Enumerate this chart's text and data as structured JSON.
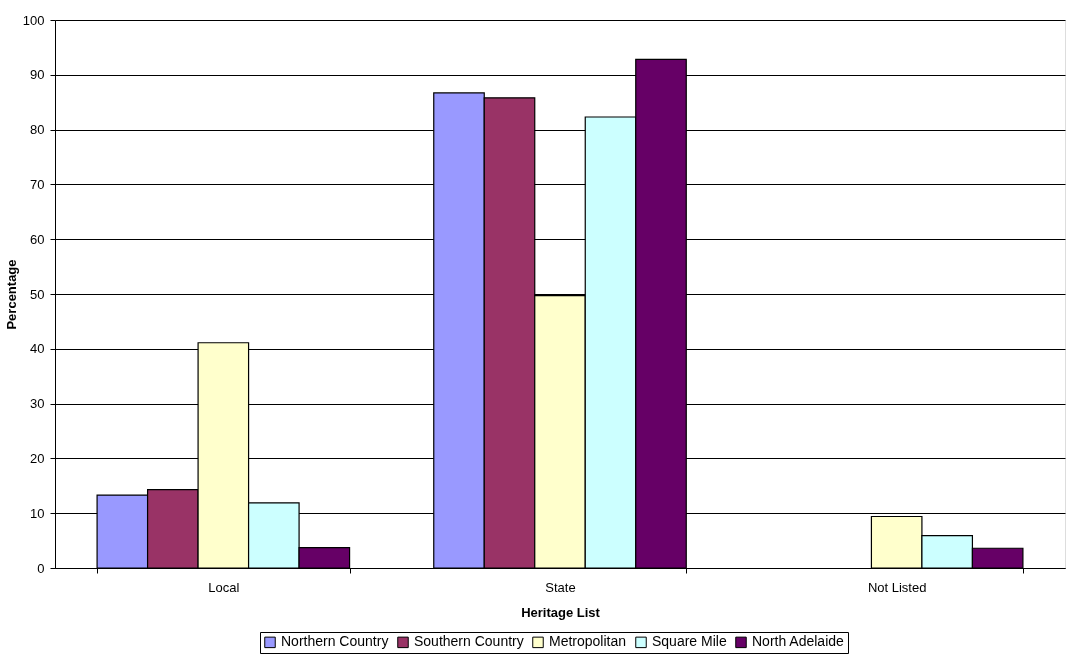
{
  "chart_data": {
    "type": "bar",
    "xlabel": "Heritage List",
    "ylabel": "Percentage",
    "categories": [
      "Local",
      "State",
      "Not Listed"
    ],
    "series": [
      {
        "name": "Northern Country",
        "color": "#9999ff",
        "values": [
          13.3,
          86.7,
          null
        ]
      },
      {
        "name": "Southern Country",
        "color": "#993366",
        "values": [
          14.3,
          85.8,
          null
        ]
      },
      {
        "name": "Metropolitan",
        "color": "#ffffcc",
        "values": [
          41.1,
          49.7,
          9.4
        ]
      },
      {
        "name": "Square Mile",
        "color": "#ccffff",
        "values": [
          11.9,
          82.3,
          5.9
        ]
      },
      {
        "name": "North Adelaide",
        "color": "#660066",
        "values": [
          3.7,
          92.8,
          3.6
        ]
      }
    ],
    "ylim": [
      0,
      100
    ],
    "yticks": [
      0,
      10,
      20,
      30,
      40,
      50,
      60,
      70,
      80,
      90,
      100
    ],
    "grid": "y",
    "legend": "bottom"
  }
}
